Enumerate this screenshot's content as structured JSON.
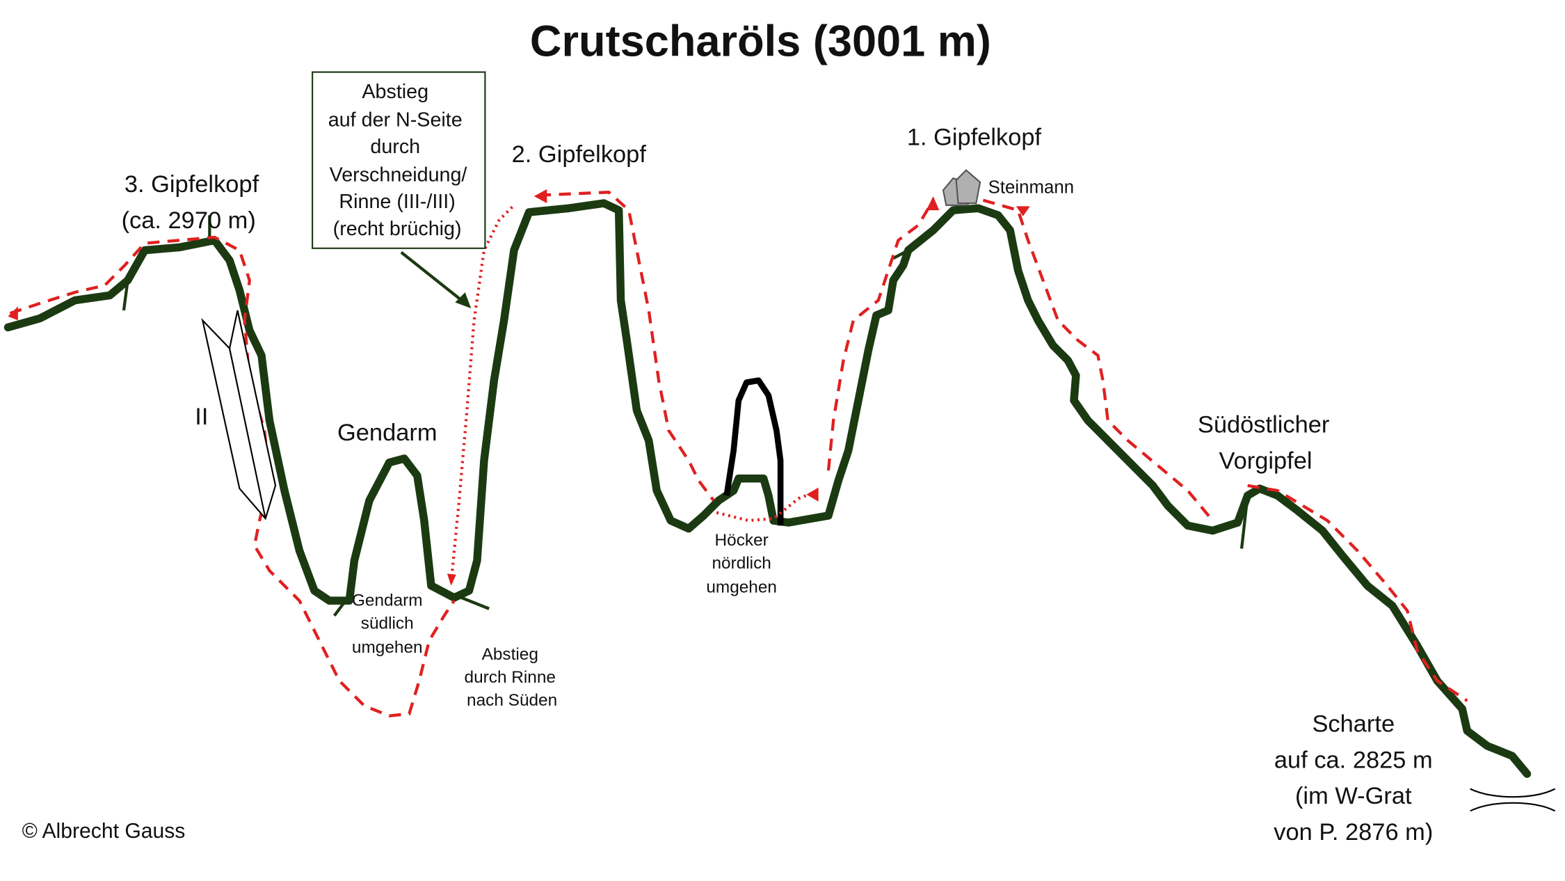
{
  "title": "Crutscharöls (3001 m)",
  "labels": {
    "peak3": [
      "3. Gipfelkopf",
      "(ca. 2970 m)"
    ],
    "peak2": "2. Gipfelkopf",
    "peak1": "1. Gipfelkopf",
    "cairn": "Steinmann",
    "gendarm": "Gendarm",
    "grade": "II",
    "subsummit": [
      "Südöstlicher",
      "Vorgipfel"
    ],
    "gendarm_bypass": [
      "Gendarm",
      "südlich",
      "umgehen"
    ],
    "descent_gully": [
      "Abstieg",
      "durch Rinne",
      "nach Süden"
    ],
    "hump_bypass": [
      "Höcker",
      "nördlich",
      "umgehen"
    ],
    "col": [
      "Scharte",
      "auf ca. 2825 m",
      "(im W-Grat",
      "von P. 2876 m)"
    ],
    "callout": [
      "Abstieg",
      "auf der N-Seite",
      "durch",
      "Verschneidung/",
      "Rinne (III-/III)",
      "(recht brüchig)"
    ],
    "copyright": "© Albrecht Gauss"
  },
  "colors": {
    "ridge": "#1b3a12",
    "route": "#e02020",
    "rock": "#000000",
    "cairn": "#b0b0b0"
  }
}
